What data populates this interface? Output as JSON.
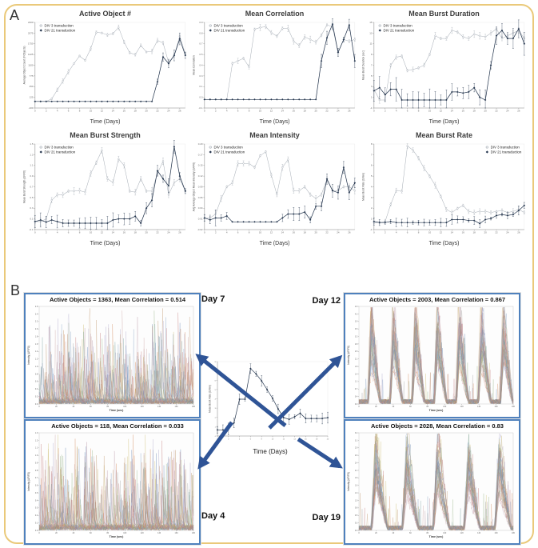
{
  "page": {
    "panel_a_label": "A",
    "panel_b_label": "B"
  },
  "colors": {
    "frame": "#eac97a",
    "div3_series": "#a9b0b8",
    "div21_series": "#25364e",
    "arrow": "#2f5496",
    "burst_border": "#4f81bd",
    "axis": "#8a8a8a",
    "tick_text": "#666666",
    "title_text": "#3b3b3b"
  },
  "legend": {
    "div3": "DIV 3 transduction",
    "div21": "DIV 21 transduction",
    "div3_marker": "open-circle-plus",
    "div21_marker": "filled-diamond"
  },
  "trace_palette": [
    "#b98b5e",
    "#7e9cc0",
    "#d07f4e",
    "#8fae7e",
    "#b08a9a",
    "#6f9b9b",
    "#a9a0c8",
    "#c9b96a",
    "#999999",
    "#bf6e6e",
    "#5f7fb0",
    "#caa3a3"
  ],
  "chart_data": [
    {
      "type": "line",
      "title": "Active Object #",
      "xlabel": "Time (Days)",
      "ylabel": "Average Object Count (# Objects)",
      "x_range": [
        0,
        27
      ],
      "ylim": [
        -200,
        2400
      ],
      "legend_pos": "left",
      "series": [
        {
          "name": "DIV 3 transduction",
          "err_frac": 0.02,
          "values": [
            0,
            0,
            0,
            80,
            350,
            620,
            900,
            1150,
            1380,
            1250,
            1600,
            2100,
            2080,
            2020,
            2060,
            2250,
            1800,
            1480,
            1420,
            1700,
            1500,
            1520,
            1850,
            1780,
            1180,
            1400,
            1980,
            1450
          ]
        },
        {
          "name": "DIV 21 transduction",
          "err_frac": 0.05,
          "values": [
            0,
            0,
            0,
            0,
            0,
            0,
            0,
            0,
            0,
            0,
            0,
            0,
            0,
            0,
            0,
            0,
            0,
            0,
            0,
            0,
            0,
            0,
            600,
            1350,
            1150,
            1400,
            1900,
            1400
          ]
        }
      ]
    },
    {
      "type": "line",
      "title": "Mean Correlation",
      "xlabel": "Time (Days)",
      "ylabel": "Mean Correlation",
      "x_range": [
        0,
        27
      ],
      "ylim": [
        -0.1,
        0.9
      ],
      "legend_pos": "left",
      "series": [
        {
          "name": "DIV 3 transduction",
          "err_frac": 0.03,
          "values": [
            0,
            0,
            0,
            0,
            0,
            0.42,
            0.45,
            0.48,
            0.38,
            0.82,
            0.84,
            0.85,
            0.78,
            0.74,
            0.83,
            0.83,
            0.68,
            0.63,
            0.73,
            0.7,
            0.67,
            0.75,
            0.87,
            0.85,
            0.55,
            0.7,
            0.68,
            0.7
          ]
        },
        {
          "name": "DIV 21 transduction",
          "err_frac": 0.06,
          "values": [
            0,
            0,
            0,
            0,
            0,
            0,
            0,
            0,
            0,
            0,
            0,
            0,
            0,
            0,
            0,
            0,
            0,
            0,
            0,
            0,
            0,
            0.45,
            0.72,
            0.88,
            0.55,
            0.7,
            0.87,
            0.45
          ]
        }
      ]
    },
    {
      "type": "line",
      "title": "Mean Burst Duration",
      "xlabel": "Time (Days)",
      "ylabel": "Mean Burst Duration (sec)",
      "x_range": [
        0,
        27
      ],
      "ylim": [
        -1,
        15
      ],
      "legend_pos": "left",
      "series": [
        {
          "name": "DIV 3 transduction",
          "err_frac": 0.03,
          "values": [
            2.5,
            0.5,
            0.5,
            7,
            8.5,
            8.7,
            6,
            6.2,
            6.5,
            7,
            9,
            12.5,
            12,
            12,
            13.5,
            13.2,
            12.3,
            12,
            12.8,
            12.5,
            12.3,
            13,
            13.8,
            12,
            12.5,
            13,
            13.5,
            12
          ]
        },
        {
          "name": "DIV 21 transduction",
          "err_frac": 0.1,
          "values": [
            2.2,
            2.8,
            1.5,
            2.5,
            2.5,
            0.5,
            0.5,
            0.5,
            0.5,
            0.5,
            0.5,
            0.5,
            0.5,
            0.5,
            2,
            2,
            1.8,
            2,
            2.8,
            1,
            0.5,
            7,
            12.5,
            13.5,
            12,
            12,
            13.8,
            11
          ]
        }
      ]
    },
    {
      "type": "line",
      "title": "Mean Burst Strength",
      "xlabel": "Time (Days)",
      "ylabel": "Mean Burst Strength (ΔF/F0)",
      "x_range": [
        0,
        27
      ],
      "ylim": [
        -0.1,
        1.5
      ],
      "legend_pos": "left",
      "series": [
        {
          "name": "DIV 3 transduction",
          "err_frac": 0.03,
          "values": [
            0.05,
            0.05,
            0.1,
            0.45,
            0.55,
            0.55,
            0.62,
            0.62,
            0.63,
            0.6,
            0.95,
            1.15,
            1.38,
            0.85,
            0.78,
            1.22,
            1.1,
            0.62,
            0.6,
            0.85,
            0.62,
            0.62,
            0.95,
            1.18,
            0.55,
            0.78,
            0.85,
            0.62
          ]
        },
        {
          "name": "DIV 21 transduction",
          "err_frac": 0.06,
          "values": [
            0.05,
            0.08,
            0.04,
            0.08,
            0.05,
            0.02,
            0.02,
            0.02,
            0.02,
            0.02,
            0.02,
            0.02,
            0.02,
            0.02,
            0.08,
            0.1,
            0.1,
            0.1,
            0.15,
            0.02,
            0.3,
            0.45,
            1.0,
            0.85,
            0.72,
            1.45,
            0.9,
            0.62
          ]
        }
      ]
    },
    {
      "type": "line",
      "title": "Mean Intensity",
      "xlabel": "Time (Days)",
      "ylabel": "Avg Average Object Mean Intensity (ΔF/F0)",
      "x_range": [
        0,
        27
      ],
      "ylim": [
        -0.02,
        0.2
      ],
      "legend_pos": "left",
      "series": [
        {
          "name": "DIV 3 transduction",
          "err_frac": 0.03,
          "values": [
            0.01,
            0.01,
            0.02,
            0.06,
            0.09,
            0.1,
            0.15,
            0.15,
            0.15,
            0.14,
            0.17,
            0.18,
            0.12,
            0.07,
            0.14,
            0.16,
            0.08,
            0.08,
            0.09,
            0.07,
            0.06,
            0.07,
            0.11,
            0.08,
            0.08,
            0.09,
            0.09,
            0.08
          ]
        },
        {
          "name": "DIV 21 transduction",
          "err_frac": 0.07,
          "values": [
            0.01,
            0.005,
            0.01,
            0.01,
            0.015,
            0,
            0,
            0,
            0,
            0,
            0,
            0,
            0,
            0,
            0.01,
            0.02,
            0.02,
            0.02,
            0.025,
            0.005,
            0.04,
            0.04,
            0.11,
            0.08,
            0.075,
            0.14,
            0.075,
            0.1
          ]
        }
      ]
    },
    {
      "type": "line",
      "title": "Mean Burst Rate",
      "xlabel": "Time (Days)",
      "ylabel": "Mean Burst Rate (1/min)",
      "x_range": [
        0,
        27
      ],
      "ylim": [
        -0.5,
        8
      ],
      "legend_pos": "right",
      "series": [
        {
          "name": "DIV 3 transduction",
          "err_frac": 0.025,
          "values": [
            0.2,
            0.2,
            0.3,
            2,
            3.4,
            3.3,
            7.8,
            7.4,
            6.6,
            5.6,
            4.8,
            3.9,
            2.8,
            1.5,
            1.2,
            1.6,
            1.9,
            1.3,
            1.2,
            1.3,
            1.3,
            1.2,
            1.3,
            1.4,
            1.2,
            1.3,
            1.5,
            1.2
          ]
        },
        {
          "name": "DIV 21 transduction",
          "err_frac": 0.04,
          "values": [
            0.3,
            0.2,
            0.2,
            0.3,
            0.2,
            0.2,
            0.2,
            0.2,
            0.2,
            0.2,
            0.2,
            0.2,
            0.2,
            0.2,
            0.5,
            0.5,
            0.5,
            0.4,
            0.4,
            0.1,
            0.5,
            0.6,
            0.9,
            1.0,
            0.9,
            1.0,
            1.4,
            1.9
          ]
        }
      ]
    },
    {
      "type": "line",
      "title": "Active Objects = 1363, Mean Correlation = 0.514",
      "day": "Day 7",
      "xlabel": "Time (sec)",
      "ylabel": "Intensity (ΔF/F0)",
      "x_range": [
        0,
        180
      ],
      "ylim": [
        0,
        2.6
      ],
      "pattern": "async",
      "trace_count": 38
    },
    {
      "type": "line",
      "title": "Active Objects = 2003, Mean Correlation = 0.867",
      "day": "Day 12",
      "xlabel": "Time (sec)",
      "ylabel": "Intensity (ΔF/F0)",
      "x_range": [
        0,
        180
      ],
      "ylim": [
        0,
        4.6
      ],
      "pattern": "bursts",
      "n_bursts": 7,
      "trace_count": 38
    },
    {
      "type": "line",
      "title": "Active Objects = 118, Mean Correlation = 0.033",
      "day": "Day 4",
      "xlabel": "Time (sec)",
      "ylabel": "Intensity (ΔF/F0)",
      "x_range": [
        0,
        180
      ],
      "ylim": [
        0,
        1.3
      ],
      "pattern": "async",
      "trace_count": 34
    },
    {
      "type": "line",
      "title": "Active Objects = 2028, Mean Correlation = 0.83",
      "day": "Day 19",
      "xlabel": "Time (sec)",
      "ylabel": "Intensity (ΔF/F0)",
      "x_range": [
        0,
        180
      ],
      "ylim": [
        0,
        3.4
      ],
      "pattern": "bursts",
      "n_bursts": 5,
      "trace_count": 38
    },
    {
      "type": "line",
      "title": "",
      "xlabel": "Time (Days)",
      "ylabel": "Mean Burst Rate (1/min)",
      "x_range": [
        0,
        20
      ],
      "ylim": [
        -0.5,
        8
      ],
      "series": [
        {
          "name": "DIV 3 transduction",
          "err_frac": 0.06,
          "values": [
            0.2,
            0.2,
            0.3,
            1.0,
            3.7,
            3.7,
            7.2,
            6.6,
            5.8,
            4.8,
            3.8,
            2.6,
            1.6,
            1.4,
            1.7,
            2.1,
            1.5,
            1.5,
            1.5,
            1.5,
            1.6
          ]
        }
      ]
    }
  ]
}
